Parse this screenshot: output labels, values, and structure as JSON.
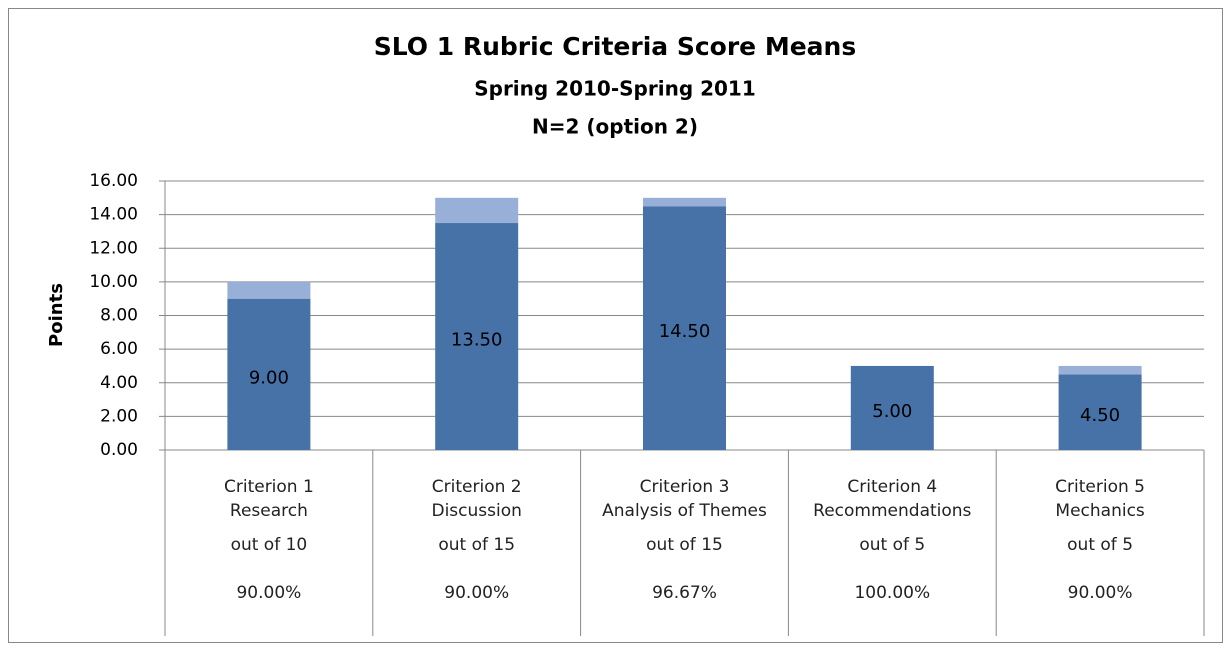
{
  "chart_data": {
    "type": "stacked_bar",
    "title": "SLO 1 Rubric Criteria Score Means",
    "subtitle": [
      "Spring 2010-Spring 2011",
      "N=2 (option 2)"
    ],
    "y_label": "Points",
    "categories": [
      [
        "Criterion 1",
        "Research"
      ],
      [
        "Criterion 2",
        "Discussion"
      ],
      [
        "Criterion 3",
        "Analysis of Themes"
      ],
      [
        "Criterion 4",
        "Recommendations"
      ],
      [
        "Criterion 5",
        "Mechanics"
      ]
    ],
    "category_notes": [
      [
        "out of 10",
        "90.00%"
      ],
      [
        "out of 15",
        "90.00%"
      ],
      [
        "out of 15",
        "96.67%"
      ],
      [
        "out of 5",
        "100.00%"
      ],
      [
        "out of 5",
        "90.00%"
      ]
    ],
    "series": [
      {
        "color": "#4672a8",
        "values": [
          9,
          13.5,
          14.5,
          5,
          4.5
        ],
        "value_labels": [
          "9.00",
          "13.50",
          "14.50",
          "5.00",
          "4.50"
        ]
      },
      {
        "color": "#98b0d8",
        "values": [
          1,
          1.5,
          0.5,
          0,
          0.5
        ]
      }
    ],
    "ylim": [
      0,
      16
    ],
    "yticks": [
      {
        "value": 0,
        "label": "0.00"
      },
      {
        "value": 2,
        "label": "2.00"
      },
      {
        "value": 4,
        "label": "4.00"
      },
      {
        "value": 6,
        "label": "6.00"
      },
      {
        "value": 8,
        "label": "8.00"
      },
      {
        "value": 10,
        "label": "10.00"
      },
      {
        "value": 12,
        "label": "12.00"
      },
      {
        "value": 14,
        "label": "14.00"
      },
      {
        "value": 16,
        "label": "16.00"
      }
    ],
    "grid": true
  }
}
